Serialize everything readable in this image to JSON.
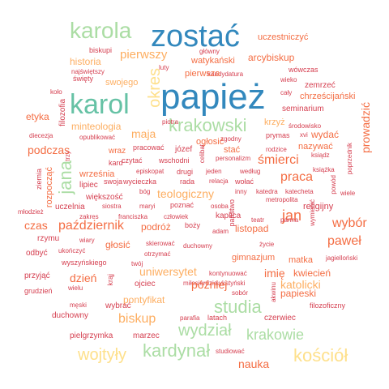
{
  "palette": {
    "red": "#d53e4f",
    "orange": "#f46d43",
    "tan": "#fdae61",
    "sand": "#fee08b",
    "lime": "#e6f598",
    "green": "#abdda4",
    "teal": "#66c2a5",
    "blue": "#3288bd"
  },
  "words": [
    {
      "t": "zostać",
      "c": "blue",
      "s": 38
    },
    {
      "t": "papież",
      "c": "blue",
      "s": 44
    },
    {
      "t": "karol",
      "c": "teal",
      "s": 34
    },
    {
      "t": "karola",
      "c": "green",
      "s": 28
    },
    {
      "t": "krakowski",
      "c": "green",
      "s": 22
    },
    {
      "t": "okres",
      "c": "sand",
      "s": 20,
      "v": true
    },
    {
      "t": "pierwszy",
      "c": "tan",
      "s": 15
    },
    {
      "t": "uczestniczyć",
      "c": "orange",
      "s": 11
    },
    {
      "t": "historia",
      "c": "tan",
      "s": 12
    },
    {
      "t": "biskupi",
      "c": "red",
      "s": 9
    },
    {
      "t": "główny",
      "c": "red",
      "s": 8
    },
    {
      "t": "watykański",
      "c": "orange",
      "s": 11
    },
    {
      "t": "arcybiskup",
      "c": "orange",
      "s": 12
    },
    {
      "t": "najświętszy",
      "c": "red",
      "s": 8
    },
    {
      "t": "luty",
      "c": "red",
      "s": 8
    },
    {
      "t": "kandydatura",
      "c": "red",
      "s": 8
    },
    {
      "t": "wówczas",
      "c": "red",
      "s": 9
    },
    {
      "t": "święty",
      "c": "red",
      "s": 9
    },
    {
      "t": "swojego",
      "c": "tan",
      "s": 11
    },
    {
      "t": "pierwsza",
      "c": "orange",
      "s": 11
    },
    {
      "t": "wieko",
      "c": "red",
      "s": 8
    },
    {
      "t": "zemrzeć",
      "c": "red",
      "s": 10
    },
    {
      "t": "cały",
      "c": "red",
      "s": 8
    },
    {
      "t": "chrześcijański",
      "c": "orange",
      "s": 11
    },
    {
      "t": "koło",
      "c": "red",
      "s": 8
    },
    {
      "t": "etyka",
      "c": "orange",
      "s": 12
    },
    {
      "t": "seminarium",
      "c": "red",
      "s": 10
    },
    {
      "t": "filozofia",
      "c": "red",
      "s": 10,
      "v": true
    },
    {
      "t": "minteologia",
      "c": "tan",
      "s": 12
    },
    {
      "t": "krzyż",
      "c": "tan",
      "s": 11
    },
    {
      "t": "prowadzić",
      "c": "orange",
      "s": 14,
      "v": true
    },
    {
      "t": "piotra",
      "c": "red",
      "s": 8
    },
    {
      "t": "diecezja",
      "c": "red",
      "s": 8
    },
    {
      "t": "opublikować",
      "c": "red",
      "s": 8
    },
    {
      "t": "zgodny",
      "c": "red",
      "s": 8
    },
    {
      "t": "środowisko",
      "c": "red",
      "s": 8
    },
    {
      "t": "podczas",
      "c": "orange",
      "s": 14
    },
    {
      "t": "maja",
      "c": "tan",
      "s": 14
    },
    {
      "t": "ogłosić",
      "c": "orange",
      "s": 11
    },
    {
      "t": "prymas",
      "c": "red",
      "s": 9
    },
    {
      "t": "xvi",
      "c": "red",
      "s": 8
    },
    {
      "t": "wydać",
      "c": "orange",
      "s": 12
    },
    {
      "t": "nazywać",
      "c": "orange",
      "s": 11
    },
    {
      "t": "poprzednik",
      "c": "red",
      "s": 8,
      "v": true
    },
    {
      "t": "wraz",
      "c": "orange",
      "s": 10
    },
    {
      "t": "pracować",
      "c": "red",
      "s": 9
    },
    {
      "t": "józef",
      "c": "red",
      "s": 10
    },
    {
      "t": "stać",
      "c": "orange",
      "s": 11
    },
    {
      "t": "rodzice",
      "c": "red",
      "s": 8
    },
    {
      "t": "celibat",
      "c": "red",
      "s": 8
    },
    {
      "t": "trzy",
      "c": "red",
      "s": 8,
      "v": true
    },
    {
      "t": "czytać",
      "c": "red",
      "s": 9
    },
    {
      "t": "wschodni",
      "c": "red",
      "s": 9
    },
    {
      "t": "personalizm",
      "c": "red",
      "s": 8
    },
    {
      "t": "ksiądz",
      "c": "red",
      "s": 8
    },
    {
      "t": "śmierci",
      "c": "orange",
      "s": 16
    },
    {
      "t": "kard",
      "c": "red",
      "s": 9
    },
    {
      "t": "episkopat",
      "c": "red",
      "s": 8
    },
    {
      "t": "drugi",
      "c": "red",
      "s": 9
    },
    {
      "t": "jeden",
      "c": "red",
      "s": 8
    },
    {
      "t": "według",
      "c": "red",
      "s": 8
    },
    {
      "t": "książka",
      "c": "red",
      "s": 8
    },
    {
      "t": "ziemia",
      "c": "red",
      "s": 9,
      "v": true
    },
    {
      "t": "rozpocząć",
      "c": "orange",
      "s": 11,
      "v": true
    },
    {
      "t": "września",
      "c": "orange",
      "s": 11
    },
    {
      "t": "swoja",
      "c": "red",
      "s": 9
    },
    {
      "t": "wycieczka",
      "c": "red",
      "s": 9
    },
    {
      "t": "rada",
      "c": "red",
      "s": 9
    },
    {
      "t": "relacja",
      "c": "red",
      "s": 8
    },
    {
      "t": "wołać",
      "c": "red",
      "s": 9
    },
    {
      "t": "praca",
      "c": "orange",
      "s": 16
    },
    {
      "t": "powód",
      "c": "red",
      "s": 8,
      "v": true
    },
    {
      "t": "jana",
      "c": "green",
      "s": 22,
      "v": true
    },
    {
      "t": "lipiec",
      "c": "red",
      "s": 10
    },
    {
      "t": "teologiczny",
      "c": "tan",
      "s": 14
    },
    {
      "t": "inny",
      "c": "red",
      "s": 8
    },
    {
      "t": "katedra",
      "c": "red",
      "s": 8
    },
    {
      "t": "katecheta",
      "c": "red",
      "s": 8
    },
    {
      "t": "wiele",
      "c": "red",
      "s": 8
    },
    {
      "t": "większość",
      "c": "red",
      "s": 10
    },
    {
      "t": "bóg",
      "c": "red",
      "s": 8
    },
    {
      "t": "metropolita",
      "c": "red",
      "s": 8
    },
    {
      "t": "religijny",
      "c": "red",
      "s": 11
    },
    {
      "t": "młodzież",
      "c": "red",
      "s": 8
    },
    {
      "t": "uczelnia",
      "c": "red",
      "s": 10
    },
    {
      "t": "siostra",
      "c": "red",
      "s": 8
    },
    {
      "t": "maryi",
      "c": "red",
      "s": 8
    },
    {
      "t": "poznać",
      "c": "red",
      "s": 9
    },
    {
      "t": "osoba",
      "c": "red",
      "s": 8
    },
    {
      "t": "państwo",
      "c": "red",
      "s": 9,
      "v": true
    },
    {
      "t": "wymienić",
      "c": "red",
      "s": 8,
      "v": true
    },
    {
      "t": "zakres",
      "c": "red",
      "s": 8
    },
    {
      "t": "franciszka",
      "c": "red",
      "s": 8
    },
    {
      "t": "człowiek",
      "c": "red",
      "s": 8
    },
    {
      "t": "kaplica",
      "c": "red",
      "s": 10
    },
    {
      "t": "czas",
      "c": "orange",
      "s": 14
    },
    {
      "t": "październik",
      "c": "orange",
      "s": 16
    },
    {
      "t": "podróż",
      "c": "orange",
      "s": 12
    },
    {
      "t": "boży",
      "c": "red",
      "s": 9
    },
    {
      "t": "jan",
      "c": "orange",
      "s": 18
    },
    {
      "t": "teatr",
      "c": "red",
      "s": 8
    },
    {
      "t": "panna",
      "c": "red",
      "s": 8
    },
    {
      "t": "wybór",
      "c": "orange",
      "s": 16
    },
    {
      "t": "rzymu",
      "c": "red",
      "s": 10
    },
    {
      "t": "wiary",
      "c": "red",
      "s": 8
    },
    {
      "t": "adam",
      "c": "red",
      "s": 8
    },
    {
      "t": "listopad",
      "c": "orange",
      "s": 12
    },
    {
      "t": "paweł",
      "c": "orange",
      "s": 16
    },
    {
      "t": "życie",
      "c": "red",
      "s": 8
    },
    {
      "t": "głosić",
      "c": "orange",
      "s": 12
    },
    {
      "t": "skierować",
      "c": "red",
      "s": 8
    },
    {
      "t": "duchowny",
      "c": "red",
      "s": 8
    },
    {
      "t": "odbyć",
      "c": "red",
      "s": 10
    },
    {
      "t": "ukończyć",
      "c": "red",
      "s": 8
    },
    {
      "t": "otrzymać",
      "c": "red",
      "s": 8
    },
    {
      "t": "gimnazjum",
      "c": "orange",
      "s": 11
    },
    {
      "t": "matka",
      "c": "orange",
      "s": 11
    },
    {
      "t": "jagielloński",
      "c": "red",
      "s": 8
    },
    {
      "t": "przyjąć",
      "c": "red",
      "s": 10
    },
    {
      "t": "wyszyńskiego",
      "c": "red",
      "s": 9
    },
    {
      "t": "twój",
      "c": "red",
      "s": 8
    },
    {
      "t": "miłosierdzie",
      "c": "red",
      "s": 8
    },
    {
      "t": "kontynuować",
      "c": "red",
      "s": 8
    },
    {
      "t": "imię",
      "c": "orange",
      "s": 14
    },
    {
      "t": "kwiecień",
      "c": "orange",
      "s": 12
    },
    {
      "t": "uniwersytet",
      "c": "tan",
      "s": 14
    },
    {
      "t": "katolicki",
      "c": "tan",
      "s": 14
    },
    {
      "t": "dzień",
      "c": "orange",
      "s": 14
    },
    {
      "t": "grudzień",
      "c": "red",
      "s": 9
    },
    {
      "t": "wielu",
      "c": "red",
      "s": 8
    },
    {
      "t": "ojciec",
      "c": "red",
      "s": 10
    },
    {
      "t": "sykstyński",
      "c": "red",
      "s": 8
    },
    {
      "t": "krąj",
      "c": "red",
      "s": 9,
      "v": true
    },
    {
      "t": "później",
      "c": "orange",
      "s": 14
    },
    {
      "t": "papieski",
      "c": "orange",
      "s": 12
    },
    {
      "t": "pontyfikat",
      "c": "tan",
      "s": 12
    },
    {
      "t": "studia",
      "c": "green",
      "s": 22
    },
    {
      "t": "sobór",
      "c": "red",
      "s": 8
    },
    {
      "t": "filozoficzny",
      "c": "red",
      "s": 9
    },
    {
      "t": "akwinu",
      "c": "red",
      "s": 8,
      "v": true
    },
    {
      "t": "męski",
      "c": "red",
      "s": 8
    },
    {
      "t": "wybrać",
      "c": "red",
      "s": 10
    },
    {
      "t": "biskup",
      "c": "tan",
      "s": 16
    },
    {
      "t": "duchowny",
      "c": "red",
      "s": 10
    },
    {
      "t": "wydział",
      "c": "green",
      "s": 20
    },
    {
      "t": "latach",
      "c": "red",
      "s": 9
    },
    {
      "t": "parafia",
      "c": "red",
      "s": 8
    },
    {
      "t": "czerwiec",
      "c": "red",
      "s": 10
    },
    {
      "t": "krakowie",
      "c": "green",
      "s": 18
    },
    {
      "t": "pielgrzymka",
      "c": "red",
      "s": 10
    },
    {
      "t": "marzec",
      "c": "red",
      "s": 10
    },
    {
      "t": "kardynał",
      "c": "green",
      "s": 22
    },
    {
      "t": "wojtyły",
      "c": "sand",
      "s": 20
    },
    {
      "t": "kościół",
      "c": "sand",
      "s": 22
    },
    {
      "t": "studiować",
      "c": "red",
      "s": 8
    },
    {
      "t": "nauka",
      "c": "orange",
      "s": 14
    }
  ]
}
